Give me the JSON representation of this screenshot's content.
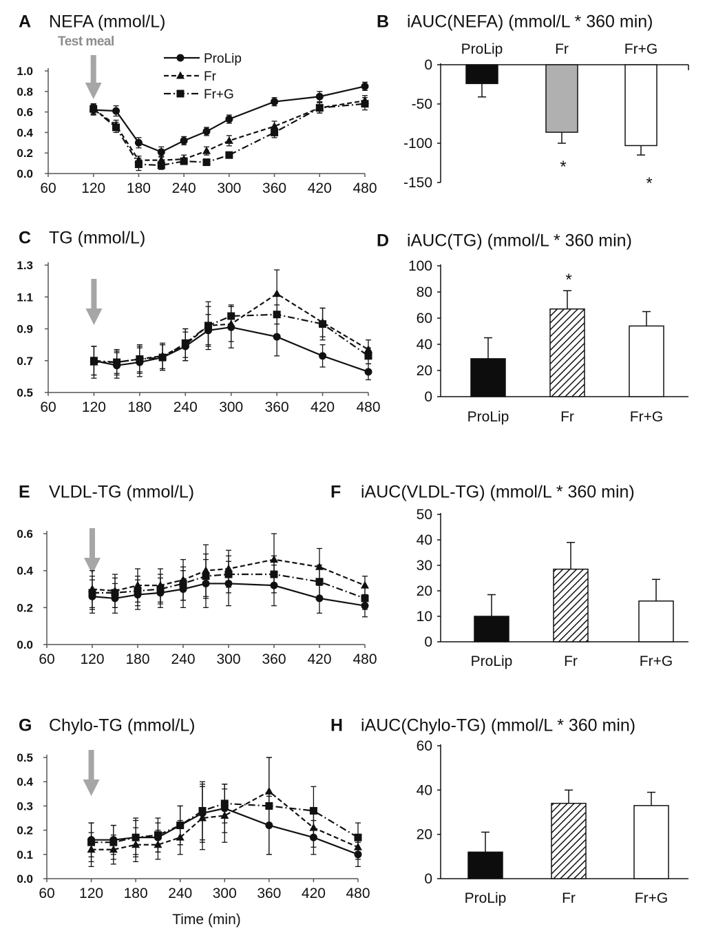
{
  "figure": {
    "xlabel": "Time (min)",
    "meal_label": "Test meal",
    "legend": [
      {
        "name": "ProLip",
        "marker": "circle",
        "dash": "solid"
      },
      {
        "name": "Fr",
        "marker": "triangle",
        "dash": "dashed"
      },
      {
        "name": "Fr+G",
        "marker": "square",
        "dash": "dashdot"
      }
    ],
    "colors": {
      "line": "#111111",
      "arrow": "#a6a6a6",
      "fr_fill": "#b0b0b0"
    }
  },
  "chart_data": [
    {
      "id": "A",
      "letter": "A",
      "title": "NEFA (mmol/L)",
      "type": "line",
      "x": [
        120,
        150,
        180,
        210,
        240,
        270,
        300,
        360,
        420,
        480
      ],
      "xticks": [
        "60",
        "120",
        "180",
        "240",
        "300",
        "360",
        "420",
        "480"
      ],
      "xlim": [
        60,
        480
      ],
      "ylim": [
        0,
        1.0
      ],
      "yticks": [
        "0.0",
        "0.2",
        "0.4",
        "0.6",
        "0.8",
        "1.0"
      ],
      "series": [
        {
          "name": "ProLip",
          "values": [
            0.62,
            0.61,
            0.3,
            0.21,
            0.32,
            0.41,
            0.53,
            0.7,
            0.75,
            0.85
          ],
          "err": [
            0.05,
            0.05,
            0.05,
            0.05,
            0.04,
            0.04,
            0.04,
            0.04,
            0.05,
            0.04
          ]
        },
        {
          "name": "Fr",
          "values": [
            0.63,
            0.47,
            0.13,
            0.13,
            0.14,
            0.22,
            0.32,
            0.46,
            0.64,
            0.71
          ],
          "err": [
            0.05,
            0.05,
            0.04,
            0.04,
            0.04,
            0.04,
            0.05,
            0.05,
            0.05,
            0.05
          ]
        },
        {
          "name": "Fr+G",
          "values": [
            0.63,
            0.45,
            0.09,
            0.08,
            0.12,
            0.11,
            0.18,
            0.4,
            0.64,
            0.68
          ],
          "err": [
            0.05,
            0.05,
            0.06,
            0.04,
            0.03,
            0.03,
            0.03,
            0.05,
            0.05,
            0.06
          ]
        }
      ]
    },
    {
      "id": "B",
      "letter": "B",
      "title": "iAUC(NEFA) (mmol/L * 360 min)",
      "type": "bar",
      "categories": [
        "ProLip",
        "Fr",
        "Fr+G"
      ],
      "values": [
        -24,
        -86,
        -103
      ],
      "err": [
        17,
        14,
        12
      ],
      "ylim": [
        -150,
        0
      ],
      "yticks": [
        "-150",
        "-100",
        "-50",
        "0"
      ],
      "significance": [
        "",
        "*",
        "*"
      ]
    },
    {
      "id": "C",
      "letter": "C",
      "title": "TG (mmol/L)",
      "type": "line",
      "x": [
        120,
        150,
        180,
        210,
        240,
        270,
        300,
        360,
        420,
        480
      ],
      "xticks": [
        "60",
        "120",
        "180",
        "240",
        "300",
        "360",
        "420",
        "480"
      ],
      "xlim": [
        60,
        480
      ],
      "ylim": [
        0.5,
        1.3
      ],
      "yticks": [
        "0.5",
        "0.7",
        "0.9",
        "1.1",
        "1.3"
      ],
      "series": [
        {
          "name": "ProLip",
          "values": [
            0.7,
            0.67,
            0.69,
            0.72,
            0.79,
            0.89,
            0.91,
            0.85,
            0.73,
            0.63
          ],
          "err": [
            0.09,
            0.08,
            0.09,
            0.08,
            0.09,
            0.1,
            0.13,
            0.12,
            0.07,
            0.05
          ]
        },
        {
          "name": "Fr",
          "values": [
            0.69,
            0.69,
            0.71,
            0.73,
            0.8,
            0.92,
            0.93,
            1.12,
            0.94,
            0.77
          ],
          "err": [
            0.1,
            0.07,
            0.09,
            0.08,
            0.1,
            0.15,
            0.11,
            0.15,
            0.09,
            0.06
          ]
        },
        {
          "name": "Fr+G",
          "values": [
            0.7,
            0.69,
            0.71,
            0.72,
            0.81,
            0.92,
            0.98,
            0.99,
            0.93,
            0.73
          ],
          "err": [
            0.09,
            0.08,
            0.08,
            0.08,
            0.09,
            0.12,
            0.07,
            0.06,
            0.1,
            0.05
          ]
        }
      ]
    },
    {
      "id": "D",
      "letter": "D",
      "title": "iAUC(TG) (mmol/L * 360 min)",
      "type": "bar",
      "categories": [
        "ProLip",
        "Fr",
        "Fr+G"
      ],
      "values": [
        29,
        67,
        54
      ],
      "err": [
        16,
        14,
        11
      ],
      "ylim": [
        0,
        100
      ],
      "yticks": [
        "0",
        "20",
        "40",
        "60",
        "80",
        "100"
      ],
      "significance": [
        "",
        "*",
        ""
      ]
    },
    {
      "id": "E",
      "letter": "E",
      "title": "VLDL-TG (mmol/L)",
      "type": "line",
      "x": [
        120,
        150,
        180,
        210,
        240,
        270,
        300,
        360,
        420,
        480
      ],
      "xticks": [
        "60",
        "120",
        "180",
        "240",
        "300",
        "360",
        "420",
        "480"
      ],
      "xlim": [
        60,
        480
      ],
      "ylim": [
        0,
        0.6
      ],
      "yticks": [
        "0.0",
        "0.2",
        "0.4",
        "0.6"
      ],
      "series": [
        {
          "name": "ProLip",
          "values": [
            0.26,
            0.25,
            0.27,
            0.28,
            0.3,
            0.33,
            0.33,
            0.32,
            0.25,
            0.21
          ],
          "err": [
            0.09,
            0.08,
            0.08,
            0.08,
            0.1,
            0.13,
            0.12,
            0.11,
            0.08,
            0.06
          ]
        },
        {
          "name": "Fr",
          "values": [
            0.3,
            0.29,
            0.32,
            0.32,
            0.35,
            0.4,
            0.41,
            0.46,
            0.42,
            0.32
          ],
          "err": [
            0.1,
            0.09,
            0.09,
            0.09,
            0.11,
            0.14,
            0.1,
            0.14,
            0.1,
            0.05
          ]
        },
        {
          "name": "Fr+G",
          "values": [
            0.28,
            0.28,
            0.29,
            0.3,
            0.33,
            0.37,
            0.38,
            0.38,
            0.34,
            0.25
          ],
          "err": [
            0.09,
            0.08,
            0.08,
            0.08,
            0.09,
            0.12,
            0.1,
            0.1,
            0.09,
            0.06
          ]
        }
      ]
    },
    {
      "id": "F",
      "letter": "F",
      "title": "iAUC(VLDL-TG) (mmol/L * 360 min)",
      "type": "bar",
      "categories": [
        "ProLip",
        "Fr",
        "Fr+G"
      ],
      "values": [
        10,
        28.5,
        16
      ],
      "err": [
        8.5,
        10.5,
        8.5
      ],
      "ylim": [
        0,
        50
      ],
      "yticks": [
        "0",
        "10",
        "20",
        "30",
        "40",
        "50"
      ],
      "significance": [
        "",
        "",
        ""
      ]
    },
    {
      "id": "G",
      "letter": "G",
      "title": "Chylo-TG (mmol/L)",
      "type": "line",
      "x": [
        120,
        150,
        180,
        210,
        240,
        270,
        300,
        360,
        420,
        480
      ],
      "xticks": [
        "60",
        "120",
        "180",
        "240",
        "300",
        "360",
        "420",
        "480"
      ],
      "xlim": [
        60,
        480
      ],
      "ylim": [
        0,
        0.5
      ],
      "yticks": [
        "0.0",
        "0.1",
        "0.2",
        "0.3",
        "0.4",
        "0.5"
      ],
      "series": [
        {
          "name": "ProLip",
          "values": [
            0.16,
            0.16,
            0.17,
            0.17,
            0.22,
            0.27,
            0.29,
            0.22,
            0.17,
            0.1
          ],
          "err": [
            0.07,
            0.06,
            0.07,
            0.06,
            0.08,
            0.12,
            0.1,
            0.12,
            0.07,
            0.05
          ]
        },
        {
          "name": "Fr",
          "values": [
            0.12,
            0.12,
            0.14,
            0.14,
            0.17,
            0.25,
            0.26,
            0.36,
            0.21,
            0.13
          ],
          "err": [
            0.07,
            0.06,
            0.07,
            0.06,
            0.07,
            0.13,
            0.11,
            0.14,
            0.08,
            0.05
          ]
        },
        {
          "name": "Fr+G",
          "values": [
            0.15,
            0.15,
            0.17,
            0.18,
            0.22,
            0.28,
            0.31,
            0.3,
            0.28,
            0.17
          ],
          "err": [
            0.08,
            0.07,
            0.08,
            0.07,
            0.08,
            0.12,
            0.08,
            0.2,
            0.1,
            0.06
          ]
        }
      ]
    },
    {
      "id": "H",
      "letter": "H",
      "title": "iAUC(Chylo-TG) (mmol/L * 360 min)",
      "type": "bar",
      "categories": [
        "ProLip",
        "Fr",
        "Fr+G"
      ],
      "values": [
        12,
        34,
        33
      ],
      "err": [
        9,
        6,
        6
      ],
      "ylim": [
        0,
        60
      ],
      "yticks": [
        "0",
        "20",
        "40",
        "60"
      ],
      "significance": [
        "",
        "",
        ""
      ]
    }
  ]
}
